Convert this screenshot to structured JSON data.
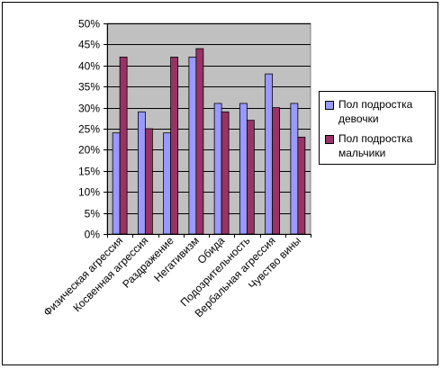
{
  "chart_data": {
    "type": "bar",
    "categories": [
      "Физическая агрессия",
      "Косвенная агрессия",
      "Раздражение",
      "Негативизм",
      "Обида",
      "Подозрительность",
      "Вербальная агрессия",
      "Чувство вины"
    ],
    "series": [
      {
        "name": "Пол подростка девочки",
        "color": "#9999FF",
        "values": [
          24,
          29,
          24,
          42,
          31,
          31,
          38,
          31
        ]
      },
      {
        "name": "Пол подростка мальчики",
        "color": "#993366",
        "values": [
          42,
          25,
          42,
          44,
          29,
          27,
          30,
          23
        ]
      }
    ],
    "yticks": [
      "0%",
      "5%",
      "10%",
      "15%",
      "20%",
      "25%",
      "30%",
      "35%",
      "40%",
      "45%",
      "50%"
    ],
    "ylim": [
      0,
      50
    ],
    "unit": "%",
    "plot_background": "#C0C0C0",
    "grid": true,
    "legend_position": "right"
  }
}
